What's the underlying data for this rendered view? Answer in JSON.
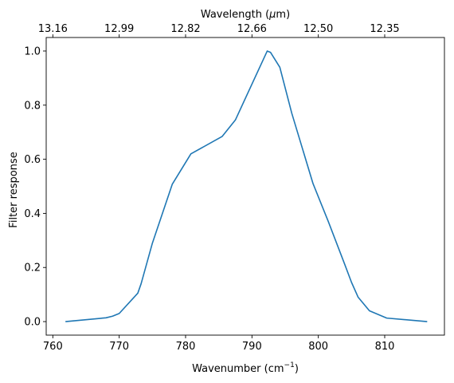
{
  "chart_data": {
    "type": "line",
    "title": "",
    "xlabel": "Wavenumber (cm",
    "xlabel_sup": "−1",
    "xlabel_close": ")",
    "ylabel": "Filter response",
    "top_xlabel": "Wavelength (",
    "top_xlabel_mu": "μ",
    "top_xlabel_unit": "m)",
    "xlim": [
      759.0,
      819.0
    ],
    "ylim": [
      -0.05,
      1.05
    ],
    "x_ticks": [
      760,
      770,
      780,
      790,
      800,
      810
    ],
    "x_tick_labels": [
      "760",
      "770",
      "780",
      "790",
      "800",
      "810"
    ],
    "y_ticks": [
      0.0,
      0.2,
      0.4,
      0.6,
      0.8,
      1.0
    ],
    "y_tick_labels": [
      "0.0",
      "0.2",
      "0.4",
      "0.6",
      "0.8",
      "1.0"
    ],
    "top_ticks_wavenumber": [
      760.0,
      770.0,
      780.0,
      790.0,
      800.0,
      810.0
    ],
    "top_tick_labels": [
      "13.16",
      "12.99",
      "12.82",
      "12.66",
      "12.50",
      "12.35"
    ],
    "grid": false,
    "line_color": "#1f77b4",
    "series": [
      {
        "x": [
          761.9,
          768.0,
          769.0,
          770.0,
          772.8,
          773.3,
          775.0,
          778.0,
          780.8,
          785.5,
          787.5,
          792.3,
          792.8,
          794.2,
          796.0,
          799.2,
          801.5,
          804.0,
          805.0,
          806.0,
          807.7,
          810.3,
          816.4
        ],
        "y": [
          0.0,
          0.014,
          0.02,
          0.03,
          0.105,
          0.14,
          0.29,
          0.508,
          0.62,
          0.684,
          0.745,
          1.0,
          0.995,
          0.94,
          0.77,
          0.51,
          0.37,
          0.21,
          0.145,
          0.09,
          0.04,
          0.013,
          0.0
        ]
      }
    ]
  }
}
